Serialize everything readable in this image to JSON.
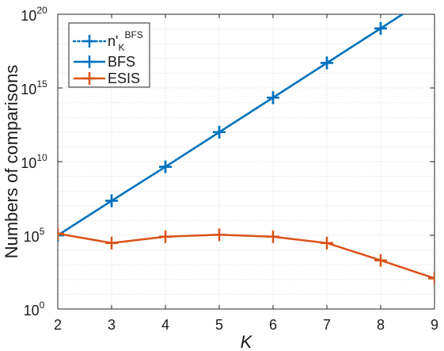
{
  "chart_data": {
    "type": "line",
    "xlabel": "K",
    "ylabel": "Numbers of comparisons",
    "x": [
      2,
      3,
      4,
      5,
      6,
      7,
      8,
      9
    ],
    "xlim": [
      2,
      9
    ],
    "ylim_exponent": [
      0,
      20
    ],
    "y_scale": "log10",
    "y_tick_base": "10",
    "y_tick_exponents": [
      "0",
      "5",
      "10",
      "15",
      "20"
    ],
    "x_tick_labels": [
      "2",
      "3",
      "4",
      "5",
      "6",
      "7",
      "8",
      "9"
    ],
    "grid": true,
    "legend_position": "top-left",
    "series": [
      {
        "name_base": "n'",
        "name_sub": "K",
        "name_sup": "BFS",
        "style": "dotted",
        "color": "#0072bd",
        "values": [
          100000.0,
          22000000.0,
          4500000000.0,
          1000000000000.0,
          220000000000000.0,
          5e+16,
          1.1e+19,
          2.5e+21
        ]
      },
      {
        "name": "BFS",
        "style": "solid",
        "color": "#0072bd",
        "values": [
          100000.0,
          22000000.0,
          4500000000.0,
          1000000000000.0,
          220000000000000.0,
          5e+16,
          1.1e+19,
          2.5e+21
        ]
      },
      {
        "name": "ESIS",
        "style": "solid",
        "color": "#d95319",
        "values": [
          130000,
          30000,
          80000,
          110000,
          80000,
          30000,
          2000,
          120
        ]
      }
    ]
  }
}
